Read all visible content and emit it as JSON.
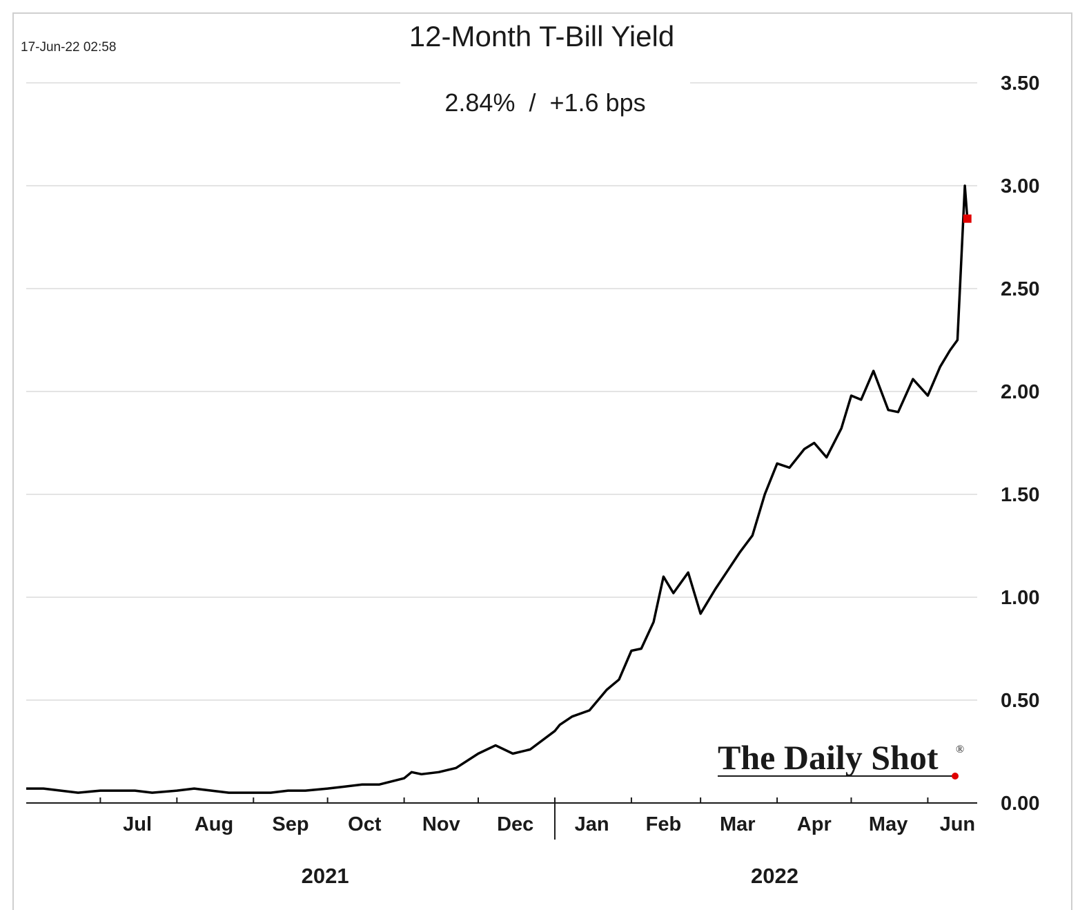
{
  "timestamp": "17-Jun-22 02:58",
  "chart_data": {
    "type": "line",
    "title": "12-Month T-Bill Yield",
    "subtitle": "2.84%  /  +1.6 bps",
    "xlabel": "",
    "ylabel": "",
    "ylim": [
      0,
      3.5
    ],
    "yticks": [
      "0.00",
      "0.50",
      "1.00",
      "1.50",
      "2.00",
      "2.50",
      "3.00",
      "3.50"
    ],
    "xlim": [
      "2021-06-01",
      "2022-06-21"
    ],
    "month_labels": [
      {
        "label": "Jul",
        "date": "2021-07-16"
      },
      {
        "label": "Aug",
        "date": "2021-08-16"
      },
      {
        "label": "Sep",
        "date": "2021-09-16"
      },
      {
        "label": "Oct",
        "date": "2021-10-16"
      },
      {
        "label": "Nov",
        "date": "2021-11-16"
      },
      {
        "label": "Dec",
        "date": "2021-12-16"
      },
      {
        "label": "Jan",
        "date": "2022-01-16"
      },
      {
        "label": "Feb",
        "date": "2022-02-14"
      },
      {
        "label": "Mar",
        "date": "2022-03-16"
      },
      {
        "label": "Apr",
        "date": "2022-04-16"
      },
      {
        "label": "May",
        "date": "2022-05-16"
      },
      {
        "label": "Jun",
        "date": "2022-06-13"
      }
    ],
    "month_ticks": [
      "2021-07-01",
      "2021-08-01",
      "2021-09-01",
      "2021-10-01",
      "2021-11-01",
      "2021-12-01",
      "2022-01-01",
      "2022-02-01",
      "2022-03-01",
      "2022-04-01",
      "2022-05-01",
      "2022-06-01"
    ],
    "year_labels": [
      {
        "label": "2021",
        "date": "2021-09-30"
      },
      {
        "label": "2022",
        "date": "2022-03-31"
      }
    ],
    "year_divider": "2022-01-01",
    "grid": true,
    "series": [
      {
        "color": "#000000",
        "x": [
          "2021-06-01",
          "2021-06-08",
          "2021-06-15",
          "2021-06-22",
          "2021-07-01",
          "2021-07-08",
          "2021-07-15",
          "2021-07-22",
          "2021-08-01",
          "2021-08-08",
          "2021-08-15",
          "2021-08-22",
          "2021-09-01",
          "2021-09-08",
          "2021-09-15",
          "2021-09-22",
          "2021-10-01",
          "2021-10-08",
          "2021-10-15",
          "2021-10-22",
          "2021-11-01",
          "2021-11-04",
          "2021-11-08",
          "2021-11-15",
          "2021-11-22",
          "2021-12-01",
          "2021-12-08",
          "2021-12-15",
          "2021-12-22",
          "2022-01-01",
          "2022-01-03",
          "2022-01-08",
          "2022-01-15",
          "2022-01-22",
          "2022-01-27",
          "2022-02-01",
          "2022-02-05",
          "2022-02-10",
          "2022-02-14",
          "2022-02-18",
          "2022-02-24",
          "2022-03-01",
          "2022-03-07",
          "2022-03-12",
          "2022-03-17",
          "2022-03-22",
          "2022-03-27",
          "2022-04-01",
          "2022-04-06",
          "2022-04-12",
          "2022-04-16",
          "2022-04-21",
          "2022-04-27",
          "2022-05-01",
          "2022-05-05",
          "2022-05-10",
          "2022-05-16",
          "2022-05-20",
          "2022-05-26",
          "2022-06-01",
          "2022-06-06",
          "2022-06-10",
          "2022-06-13",
          "2022-06-16"
        ],
        "values": [
          0.07,
          0.07,
          0.06,
          0.05,
          0.06,
          0.06,
          0.06,
          0.05,
          0.06,
          0.07,
          0.06,
          0.05,
          0.05,
          0.05,
          0.06,
          0.06,
          0.07,
          0.08,
          0.09,
          0.09,
          0.12,
          0.15,
          0.14,
          0.15,
          0.17,
          0.24,
          0.28,
          0.24,
          0.26,
          0.35,
          0.38,
          0.42,
          0.45,
          0.55,
          0.6,
          0.74,
          0.75,
          0.88,
          1.1,
          1.02,
          1.12,
          0.92,
          1.04,
          1.13,
          1.22,
          1.3,
          1.5,
          1.65,
          1.63,
          1.72,
          1.75,
          1.68,
          1.82,
          1.98,
          1.96,
          2.1,
          1.91,
          1.9,
          2.06,
          1.98,
          2.12,
          2.2,
          2.25,
          3.0
        ]
      }
    ],
    "last_point": {
      "x": "2022-06-17",
      "value": 2.84,
      "color": "#e00000"
    }
  },
  "brand": {
    "text": "The Daily Shot",
    "reg": "®",
    "dot_color": "#e00000"
  }
}
